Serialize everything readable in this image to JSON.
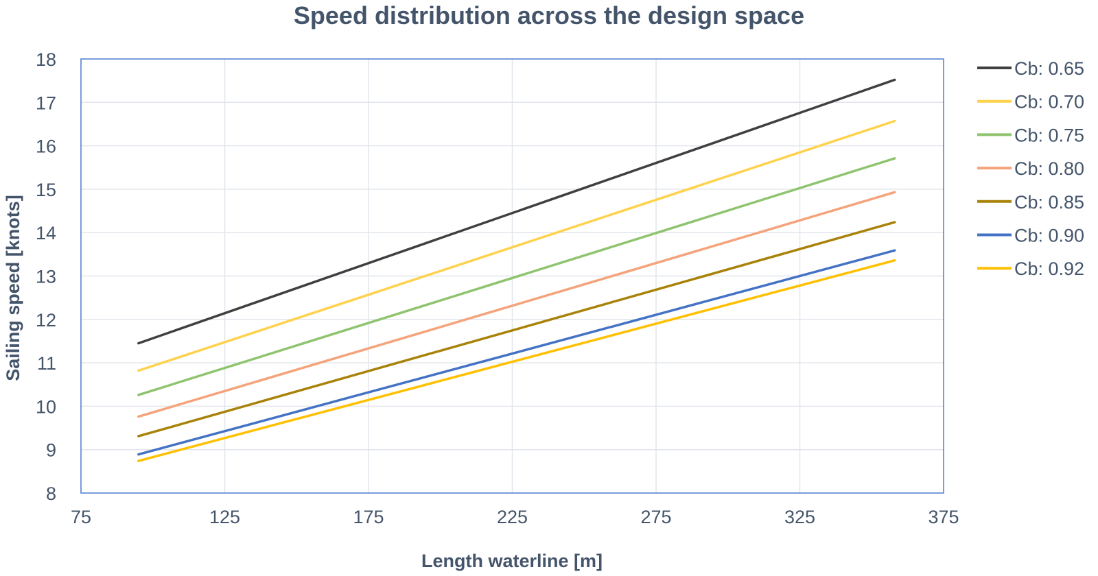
{
  "chart_data": {
    "type": "line",
    "title": "Speed distribution across the design space",
    "xlabel": "Length waterline [m]",
    "ylabel": "Sailing speed [knots]",
    "xlim": [
      75,
      375
    ],
    "ylim": [
      8,
      18
    ],
    "xticks": [
      75,
      125,
      175,
      225,
      275,
      325,
      375
    ],
    "yticks": [
      8,
      9,
      10,
      11,
      12,
      13,
      14,
      15,
      16,
      17,
      18
    ],
    "grid": true,
    "legend_position": "right",
    "series": [
      {
        "name": "Cb: 0.65",
        "color": "#404040",
        "x": [
          95,
          358
        ],
        "y": [
          11.45,
          17.52
        ]
      },
      {
        "name": "Cb: 0.70",
        "color": "#ffd24d",
        "x": [
          95,
          358
        ],
        "y": [
          10.82,
          16.57
        ]
      },
      {
        "name": "Cb: 0.75",
        "color": "#8fc46e",
        "x": [
          95,
          358
        ],
        "y": [
          10.26,
          15.71
        ]
      },
      {
        "name": "Cb: 0.80",
        "color": "#f4a37a",
        "x": [
          95,
          358
        ],
        "y": [
          9.76,
          14.93
        ]
      },
      {
        "name": "Cb: 0.85",
        "color": "#a88209",
        "x": [
          95,
          358
        ],
        "y": [
          9.31,
          14.24
        ]
      },
      {
        "name": "Cb: 0.90",
        "color": "#4472c4",
        "x": [
          95,
          358
        ],
        "y": [
          8.89,
          13.59
        ]
      },
      {
        "name": "Cb: 0.92",
        "color": "#ffc000",
        "x": [
          95,
          358
        ],
        "y": [
          8.74,
          13.36
        ]
      }
    ]
  }
}
